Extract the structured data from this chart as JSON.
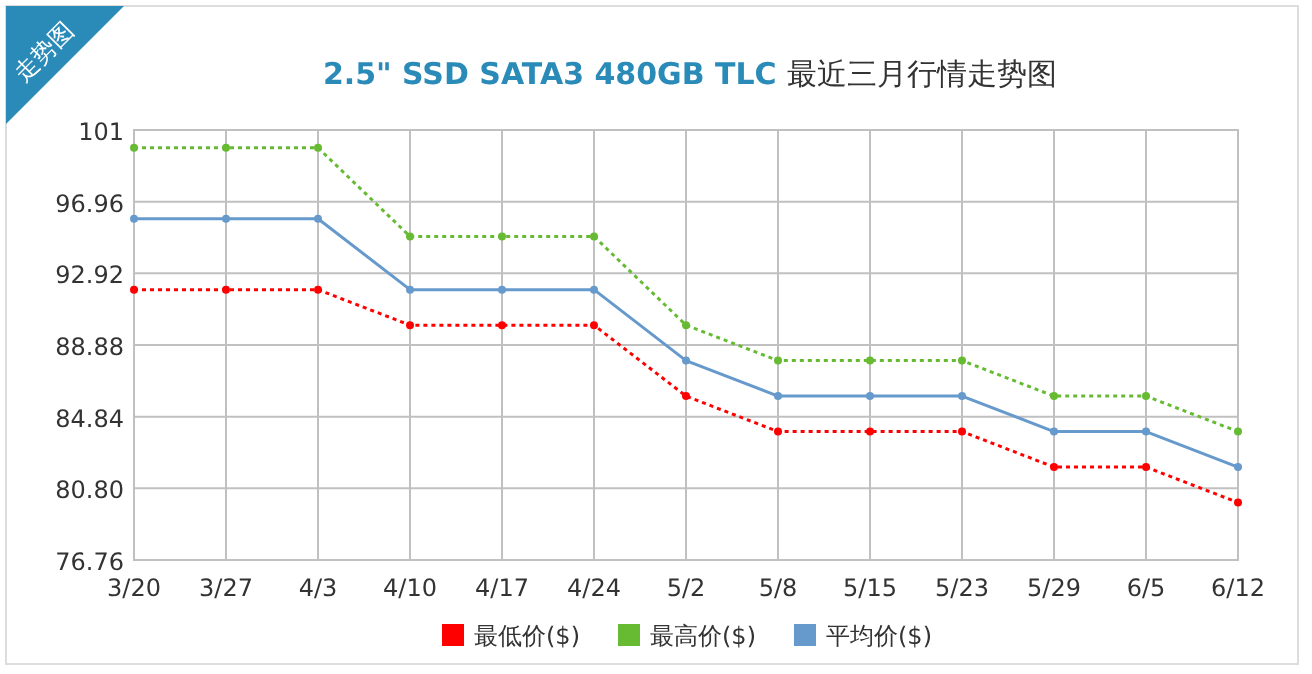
{
  "chart_data": {
    "type": "line",
    "title": "2.5\" SSD SATA3 480GB TLC 最近三月行情走势图",
    "annotations": [
      "走势图"
    ],
    "categories": [
      "3/20",
      "3/27",
      "4/3",
      "4/10",
      "4/17",
      "4/24",
      "5/2",
      "5/8",
      "5/15",
      "5/23",
      "5/29",
      "6/5",
      "6/12"
    ],
    "series": [
      {
        "name": "最低价($)",
        "color": "#ff0000",
        "line_style": "dotted",
        "values": [
          92,
          92,
          92,
          90,
          90,
          90,
          86,
          84,
          84,
          84,
          82,
          82,
          80
        ]
      },
      {
        "name": "最高价($)",
        "color": "#66bb33",
        "line_style": "dotted",
        "values": [
          100,
          100,
          100,
          95,
          95,
          95,
          90,
          88,
          88,
          88,
          86,
          86,
          84
        ]
      },
      {
        "name": "平均价($)",
        "color": "#6699cc",
        "line_style": "solid",
        "values": [
          96,
          96,
          96,
          92,
          92,
          92,
          88,
          86,
          86,
          86,
          84,
          84,
          82
        ]
      }
    ],
    "ylim": [
      76.76,
      101
    ],
    "yticks": [
      {
        "value": 76.76,
        "label": "76.76"
      },
      {
        "value": 80.8,
        "label": "80.80"
      },
      {
        "value": 84.84,
        "label": "84.84"
      },
      {
        "value": 88.88,
        "label": "88.88"
      },
      {
        "value": 92.92,
        "label": "92.92"
      },
      {
        "value": 96.96,
        "label": "96.96"
      },
      {
        "value": 101,
        "label": "101"
      }
    ],
    "grid": true,
    "legend": "bottom",
    "marker": "circle"
  }
}
